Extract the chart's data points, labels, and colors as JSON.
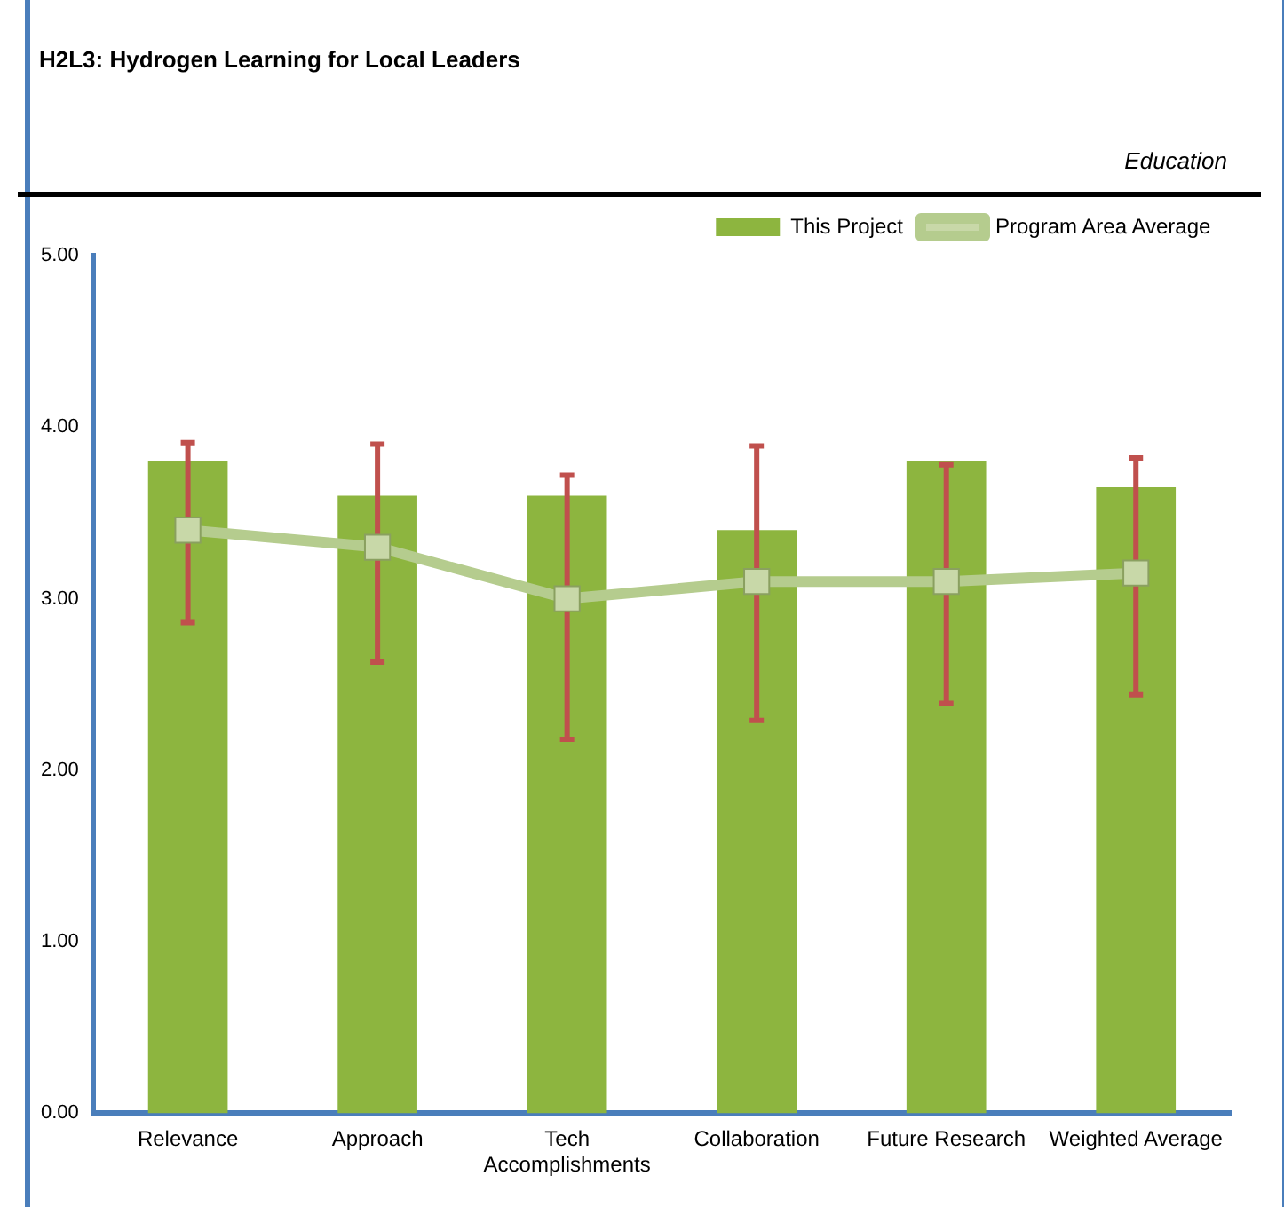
{
  "chart_data": {
    "type": "bar",
    "title": "H2L3: Hydrogen Learning for Local Leaders",
    "subtitle": "Education",
    "categories": [
      "Relevance",
      "Approach",
      "Tech Accomplishments",
      "Collaboration",
      "Future Research",
      "Weighted Average"
    ],
    "series": [
      {
        "name": "This Project",
        "color": "#8db53f",
        "values": [
          3.8,
          3.6,
          3.6,
          3.4,
          3.8,
          3.65
        ]
      },
      {
        "name": "Program Area Average",
        "type": "line",
        "color": "#b5cc8e",
        "values": [
          3.4,
          3.3,
          3.0,
          3.1,
          3.1,
          3.15
        ],
        "errors": [
          [
            2.86,
            3.91
          ],
          [
            2.63,
            3.9
          ],
          [
            2.18,
            3.72
          ],
          [
            2.29,
            3.89
          ],
          [
            2.39,
            3.78
          ],
          [
            2.44,
            3.82
          ]
        ]
      }
    ],
    "ylim": [
      0,
      5
    ],
    "yticks": [
      {
        "value": 0,
        "label": "0.00"
      },
      {
        "value": 1,
        "label": "1.00"
      },
      {
        "value": 2,
        "label": "2.00"
      },
      {
        "value": 3,
        "label": "3.00"
      },
      {
        "value": 4,
        "label": "4.00"
      },
      {
        "value": 5,
        "label": "5.00"
      }
    ],
    "grid": false,
    "legend": "top right",
    "marker": "square"
  }
}
